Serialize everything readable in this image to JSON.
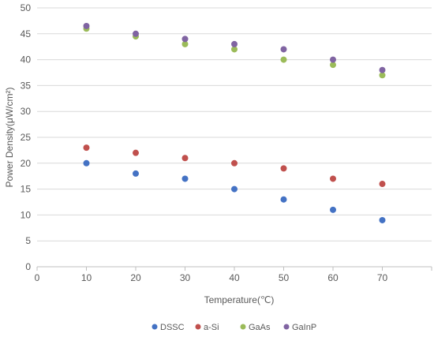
{
  "chart_data": {
    "type": "scatter",
    "xlabel": "Temperature(℃)",
    "ylabel": "Power Density(μW/cm²)",
    "xlim": [
      0,
      80
    ],
    "ylim": [
      0,
      50
    ],
    "xticks": [
      0,
      10,
      20,
      30,
      40,
      50,
      60,
      70
    ],
    "yticks": [
      0,
      5,
      10,
      15,
      20,
      25,
      30,
      35,
      40,
      45,
      50
    ],
    "grid": "horizontal",
    "legend_position": "bottom",
    "x": [
      10,
      20,
      30,
      40,
      50,
      60,
      70
    ],
    "series": [
      {
        "name": "DSSC",
        "color": "#4472C4",
        "values": [
          20,
          18,
          17,
          15,
          13,
          11,
          9
        ]
      },
      {
        "name": "a-Si",
        "color": "#C0504D",
        "values": [
          23,
          22,
          21,
          20,
          19,
          17,
          16
        ]
      },
      {
        "name": "GaAs",
        "color": "#9BBB59",
        "values": [
          46,
          44.5,
          43,
          42,
          40,
          39,
          37
        ]
      },
      {
        "name": "GaInP",
        "color": "#8064A2",
        "values": [
          46.5,
          45,
          44,
          43,
          42,
          40,
          38
        ]
      }
    ]
  }
}
